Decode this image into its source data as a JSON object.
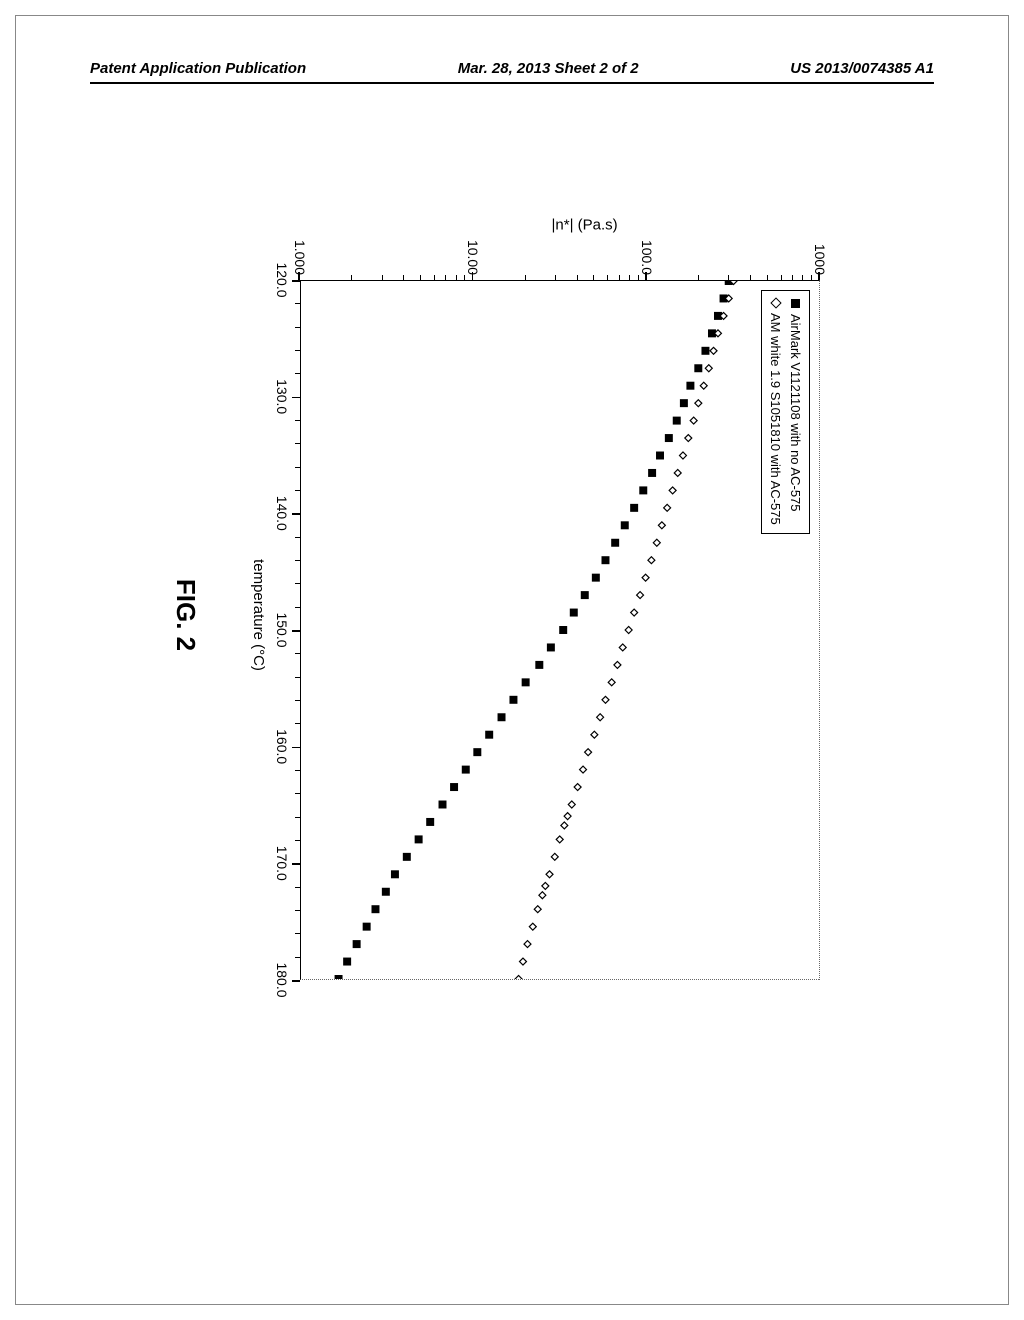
{
  "header": {
    "left": "Patent Application Publication",
    "center": "Mar. 28, 2013  Sheet 2 of 2",
    "right": "US 2013/0074385 A1"
  },
  "figure": {
    "title": "FIG. 2",
    "chart": {
      "type": "scatter",
      "x_axis": {
        "label": "temperature (°C)",
        "min": 120,
        "max": 180,
        "ticks": [
          120,
          130,
          140,
          150,
          160,
          170,
          180
        ],
        "tick_labels": [
          "120.0",
          "130.0",
          "140.0",
          "150.0",
          "160.0",
          "170.0",
          "180.0"
        ]
      },
      "y_axis": {
        "label": "|n*| (Pa.s)",
        "scale": "log",
        "min": 1,
        "max": 1000,
        "ticks": [
          1,
          10,
          100,
          1000
        ],
        "tick_labels": [
          "1.000",
          "10.00",
          "100.0",
          "1000"
        ]
      },
      "legend": {
        "items": [
          {
            "marker": "square-filled",
            "label": "AirMark V1121108 with no AC-575"
          },
          {
            "marker": "diamond-open",
            "label": "AM white 1.9 S1051810 with AC-575"
          }
        ]
      },
      "series": [
        {
          "name": "AirMark V1121108 with no AC-575",
          "marker": "square-filled",
          "color": "#000000",
          "marker_size": 8,
          "data": [
            [
              120,
              300
            ],
            [
              121.5,
              280
            ],
            [
              123,
              260
            ],
            [
              124.5,
              240
            ],
            [
              126,
              220
            ],
            [
              127.5,
              200
            ],
            [
              129,
              180
            ],
            [
              130.5,
              165
            ],
            [
              132,
              150
            ],
            [
              133.5,
              135
            ],
            [
              135,
              120
            ],
            [
              136.5,
              108
            ],
            [
              138,
              96
            ],
            [
              139.5,
              85
            ],
            [
              141,
              75
            ],
            [
              142.5,
              66
            ],
            [
              144,
              58
            ],
            [
              145.5,
              51
            ],
            [
              147,
              44
            ],
            [
              148.5,
              38
            ],
            [
              150,
              33
            ],
            [
              151.5,
              28
            ],
            [
              153,
              24
            ],
            [
              154.5,
              20
            ],
            [
              156,
              17
            ],
            [
              157.5,
              14.5
            ],
            [
              159,
              12.3
            ],
            [
              160.5,
              10.5
            ],
            [
              162,
              9
            ],
            [
              163.5,
              7.7
            ],
            [
              165,
              6.6
            ],
            [
              166.5,
              5.6
            ],
            [
              168,
              4.8
            ],
            [
              169.5,
              4.1
            ],
            [
              171,
              3.5
            ],
            [
              172.5,
              3.1
            ],
            [
              174,
              2.7
            ],
            [
              175.5,
              2.4
            ],
            [
              177,
              2.1
            ],
            [
              178.5,
              1.85
            ],
            [
              180,
              1.65
            ]
          ]
        },
        {
          "name": "AM white 1.9 S1051810 with AC-575",
          "marker": "diamond-open",
          "color": "#000000",
          "marker_size": 7,
          "data": [
            [
              120,
              320
            ],
            [
              121.5,
              300
            ],
            [
              123,
              280
            ],
            [
              124.5,
              260
            ],
            [
              126,
              245
            ],
            [
              127.5,
              230
            ],
            [
              129,
              215
            ],
            [
              130.5,
              200
            ],
            [
              132,
              188
            ],
            [
              133.5,
              175
            ],
            [
              135,
              163
            ],
            [
              136.5,
              152
            ],
            [
              138,
              142
            ],
            [
              139.5,
              132
            ],
            [
              141,
              123
            ],
            [
              142.5,
              115
            ],
            [
              144,
              107
            ],
            [
              145.5,
              99
            ],
            [
              147,
              92
            ],
            [
              148.5,
              85
            ],
            [
              150,
              79
            ],
            [
              151.5,
              73
            ],
            [
              153,
              68
            ],
            [
              154.5,
              63
            ],
            [
              156,
              58
            ],
            [
              157.5,
              54
            ],
            [
              159,
              50
            ],
            [
              160.5,
              46
            ],
            [
              162,
              43
            ],
            [
              163.5,
              40
            ],
            [
              165,
              37
            ],
            [
              166,
              35
            ],
            [
              166.8,
              33.5
            ],
            [
              168,
              31.5
            ],
            [
              169.5,
              29.5
            ],
            [
              171,
              27.5
            ],
            [
              172,
              26
            ],
            [
              172.8,
              25
            ],
            [
              174,
              23.5
            ],
            [
              175.5,
              22
            ],
            [
              177,
              20.5
            ],
            [
              178.5,
              19.3
            ],
            [
              180,
              18.2
            ]
          ]
        }
      ],
      "background_color": "#ffffff",
      "border_color": "#000000"
    }
  }
}
